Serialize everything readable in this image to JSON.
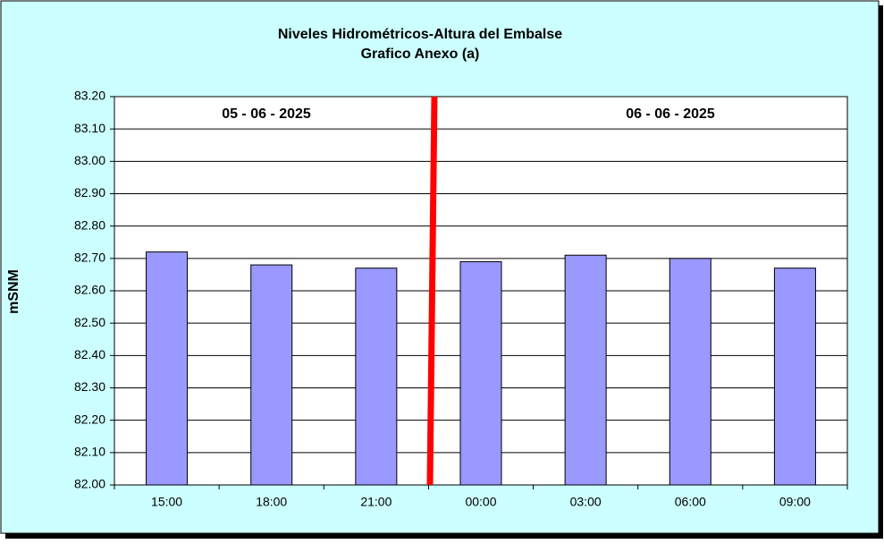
{
  "chart_data": {
    "type": "bar",
    "title": "Niveles Hidrométricos-Altura del Embalse",
    "subtitle": "Grafico Anexo (a)",
    "y_label": "mSNM",
    "annotations": [
      "05 - 06 - 2025",
      "06 - 06 - 2025"
    ],
    "categories": [
      "15:00",
      "18:00",
      "21:00",
      "00:00",
      "03:00",
      "06:00",
      "09:00"
    ],
    "values": [
      82.72,
      82.68,
      82.67,
      82.69,
      82.71,
      82.7,
      82.67
    ],
    "color": "#9999ff",
    "ylim": [
      82.0,
      83.2
    ],
    "yticks": [
      {
        "value": 82.0,
        "label": "82.00"
      },
      {
        "value": 82.1,
        "label": "82.10"
      },
      {
        "value": 82.2,
        "label": "82.20"
      },
      {
        "value": 82.3,
        "label": "82.30"
      },
      {
        "value": 82.4,
        "label": "82.40"
      },
      {
        "value": 82.5,
        "label": "82.50"
      },
      {
        "value": 82.6,
        "label": "82.60"
      },
      {
        "value": 82.7,
        "label": "82.70"
      },
      {
        "value": 82.8,
        "label": "82.80"
      },
      {
        "value": 82.9,
        "label": "82.90"
      },
      {
        "value": 83.0,
        "label": "83.00"
      },
      {
        "value": 83.1,
        "label": "83.10"
      },
      {
        "value": 83.2,
        "label": "83.20"
      }
    ],
    "grid": true
  }
}
